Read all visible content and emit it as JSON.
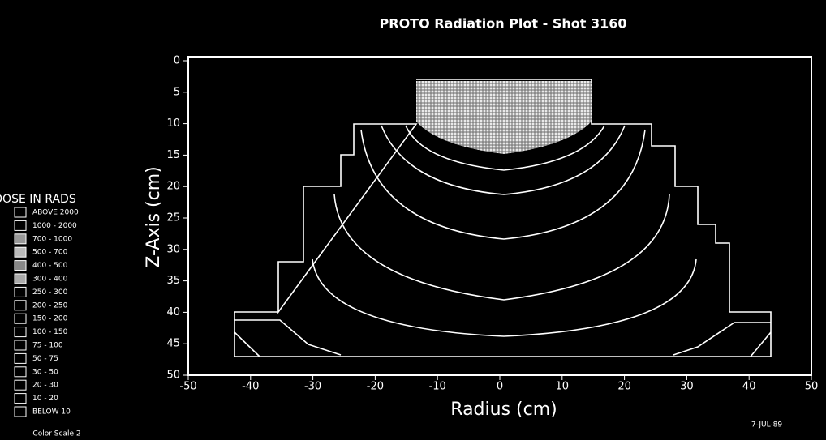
{
  "chart_data": {
    "type": "contour",
    "title": "PROTO  Radiation Plot - Shot 3160",
    "x_label": "Radius (cm)",
    "y_label": "Z-Axis (cm)",
    "xlim": [
      -50,
      50
    ],
    "xticks": [
      -50,
      -40,
      -30,
      -20,
      -10,
      0,
      10,
      20,
      30,
      40,
      50
    ],
    "ylim": [
      0,
      50
    ],
    "yticks": [
      0,
      5,
      10,
      15,
      20,
      25,
      30,
      35,
      40,
      45,
      50
    ],
    "y_inverted": true,
    "legend_title": "DOSE IN RADS",
    "legend": [
      "ABOVE  2000",
      "1000 - 2000",
      "700 - 1000",
      "500 - 700",
      "400 - 500",
      "300 - 400",
      "250 - 300",
      "200 - 250",
      "150 - 200",
      "100 - 150",
      "75 - 100",
      "50 - 75",
      "30 - 50",
      "20 - 30",
      "10 - 20",
      "BELOW  10"
    ],
    "color_scale": "Color Scale  2",
    "date": "7-JUL-89"
  }
}
